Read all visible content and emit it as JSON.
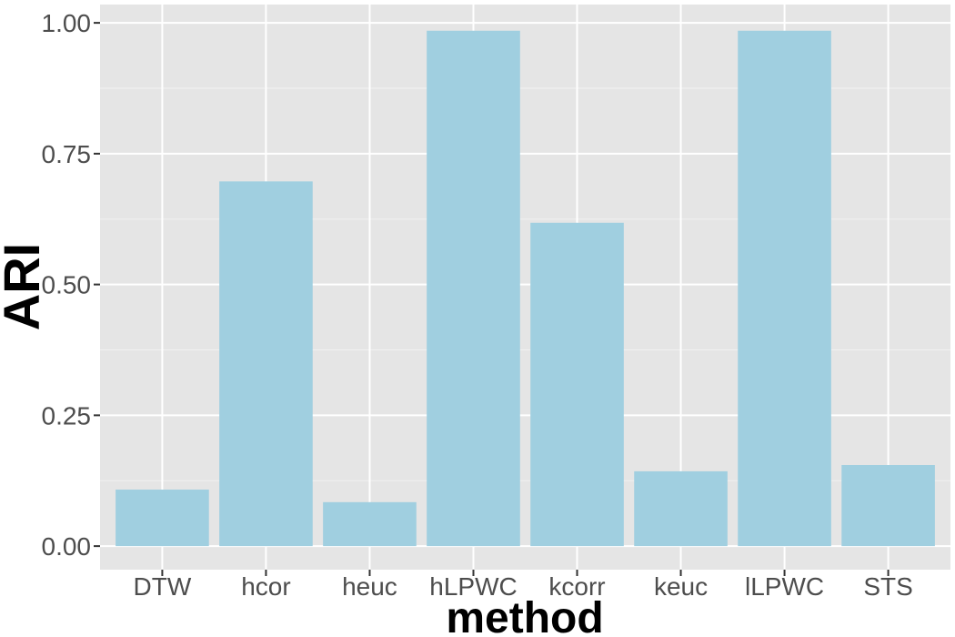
{
  "chart_data": {
    "type": "bar",
    "categories": [
      "DTW",
      "hcor",
      "heuc",
      "hLPWC",
      "kcorr",
      "keuc",
      "lLPWC",
      "STS"
    ],
    "values": [
      0.108,
      0.697,
      0.084,
      0.985,
      0.618,
      0.143,
      0.985,
      0.155
    ],
    "xlabel": "method",
    "ylabel": "ARI",
    "ylim": [
      -0.045,
      1.035
    ],
    "yticks": [
      0.0,
      0.25,
      0.5,
      0.75,
      1.0
    ],
    "ytick_labels": [
      "0.00",
      "0.25",
      "0.50",
      "0.75",
      "1.00"
    ],
    "grid": true,
    "legend": "none",
    "colors": {
      "bar": "#a0cfe0",
      "panel": "#e5e5e5",
      "grid_major": "#ffffff",
      "grid_minor": "#f2f2f2",
      "tick": "#333333",
      "tick_label": "#4d4d4d",
      "title": "#000000"
    }
  }
}
